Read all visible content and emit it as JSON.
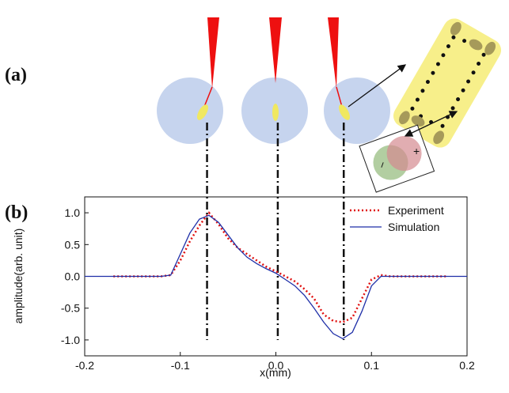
{
  "panels": {
    "a": "(a)",
    "b": "(b)"
  },
  "diagram": {
    "plus": "+",
    "minus": "−"
  },
  "chart_data": {
    "type": "line",
    "xlabel": "x(mm)",
    "ylabel": "amplitude(arb. unit)",
    "xlim": [
      -0.2,
      0.2
    ],
    "ylim": [
      -1.25,
      1.25
    ],
    "xticks": [
      -0.2,
      -0.1,
      {
        "value": 0,
        "label": "0.0"
      },
      0.1,
      0.2
    ],
    "yticks": [
      {
        "value": 1,
        "label": "1.0"
      },
      0.5,
      {
        "value": 0,
        "label": "0.0"
      },
      -0.5,
      {
        "value": -1,
        "label": "-1.0"
      }
    ],
    "guide_lines": [
      -0.072,
      0.002,
      0.071
    ],
    "legend": "upper right",
    "x": [
      -0.2,
      -0.19,
      -0.18,
      -0.17,
      -0.16,
      -0.15,
      -0.14,
      -0.13,
      -0.12,
      -0.11,
      -0.1,
      -0.09,
      -0.08,
      -0.07,
      -0.06,
      -0.05,
      -0.04,
      -0.03,
      -0.02,
      -0.01,
      0,
      0.01,
      0.02,
      0.03,
      0.04,
      0.05,
      0.06,
      0.07,
      0.08,
      0.09,
      0.1,
      0.11,
      0.12,
      0.13,
      0.14,
      0.15,
      0.16,
      0.17,
      0.18,
      0.19,
      0.2
    ],
    "series": [
      {
        "name": "Experiment",
        "color": "#e0100f",
        "dash": true,
        "values": [
          null,
          null,
          null,
          0,
          0,
          0,
          0,
          0,
          0,
          0.02,
          0.25,
          0.55,
          0.8,
          1.0,
          0.82,
          0.6,
          0.45,
          0.35,
          0.25,
          0.15,
          0.08,
          0,
          -0.08,
          -0.2,
          -0.35,
          -0.6,
          -0.7,
          -0.72,
          -0.65,
          -0.35,
          -0.05,
          0.02,
          0,
          0,
          0,
          0,
          0,
          0,
          0,
          null,
          null
        ]
      },
      {
        "name": "Simulation",
        "color": "#1f2fa8",
        "dash": false,
        "values": [
          0,
          0,
          0,
          0,
          0,
          0,
          0,
          0,
          0,
          0.02,
          0.35,
          0.68,
          0.9,
          0.96,
          0.85,
          0.65,
          0.45,
          0.3,
          0.2,
          0.12,
          0.05,
          -0.05,
          -0.15,
          -0.3,
          -0.5,
          -0.72,
          -0.9,
          -0.98,
          -0.88,
          -0.55,
          -0.15,
          0,
          0,
          0,
          0,
          0,
          0,
          0,
          0,
          0,
          0
        ]
      }
    ]
  }
}
